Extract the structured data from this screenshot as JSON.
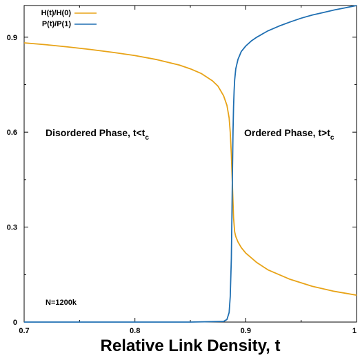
{
  "chart_data": {
    "type": "line",
    "xlabel": "Relative Link Density, t",
    "ylabel": "",
    "xlim": [
      0.7,
      1.0
    ],
    "ylim": [
      0,
      1.0
    ],
    "x_ticks": [
      "0.7",
      "0.8",
      "0.9",
      "1"
    ],
    "y_ticks": [
      "0",
      "0.3",
      "0.6",
      "0.9"
    ],
    "legend_position": "top-left",
    "grid": false,
    "annotations": {
      "left_phase": {
        "main": "Disordered Phase, t<t",
        "sub": "c"
      },
      "right_phase": {
        "main": "Ordered Phase, t>t",
        "sub": "c"
      },
      "size": "N=1200k"
    },
    "series": [
      {
        "name": "H(t)/H(0)",
        "color": "#e8a317",
        "x": [
          0.7,
          0.72,
          0.74,
          0.76,
          0.78,
          0.8,
          0.82,
          0.84,
          0.85,
          0.86,
          0.87,
          0.875,
          0.88,
          0.883,
          0.885,
          0.886,
          0.887,
          0.888,
          0.889,
          0.89,
          0.891,
          0.893,
          0.896,
          0.9,
          0.91,
          0.92,
          0.94,
          0.96,
          0.98,
          1.0
        ],
        "y": [
          0.882,
          0.876,
          0.869,
          0.861,
          0.852,
          0.842,
          0.829,
          0.812,
          0.8,
          0.785,
          0.762,
          0.745,
          0.715,
          0.685,
          0.645,
          0.6,
          0.53,
          0.43,
          0.33,
          0.285,
          0.27,
          0.253,
          0.235,
          0.218,
          0.188,
          0.165,
          0.135,
          0.113,
          0.097,
          0.085
        ]
      },
      {
        "name": "P(t)/P(1)",
        "color": "#1f6fb2",
        "x": [
          0.7,
          0.8,
          0.85,
          0.88,
          0.883,
          0.885,
          0.886,
          0.887,
          0.8875,
          0.888,
          0.8885,
          0.889,
          0.8895,
          0.89,
          0.891,
          0.893,
          0.896,
          0.9,
          0.905,
          0.91,
          0.92,
          0.93,
          0.94,
          0.95,
          0.96,
          0.97,
          0.98,
          0.99,
          1.0
        ],
        "y": [
          0.0,
          0.0,
          0.0,
          0.002,
          0.008,
          0.03,
          0.08,
          0.2,
          0.33,
          0.47,
          0.6,
          0.68,
          0.73,
          0.765,
          0.8,
          0.83,
          0.855,
          0.872,
          0.888,
          0.9,
          0.92,
          0.935,
          0.948,
          0.96,
          0.97,
          0.978,
          0.986,
          0.993,
          1.0
        ]
      }
    ]
  }
}
